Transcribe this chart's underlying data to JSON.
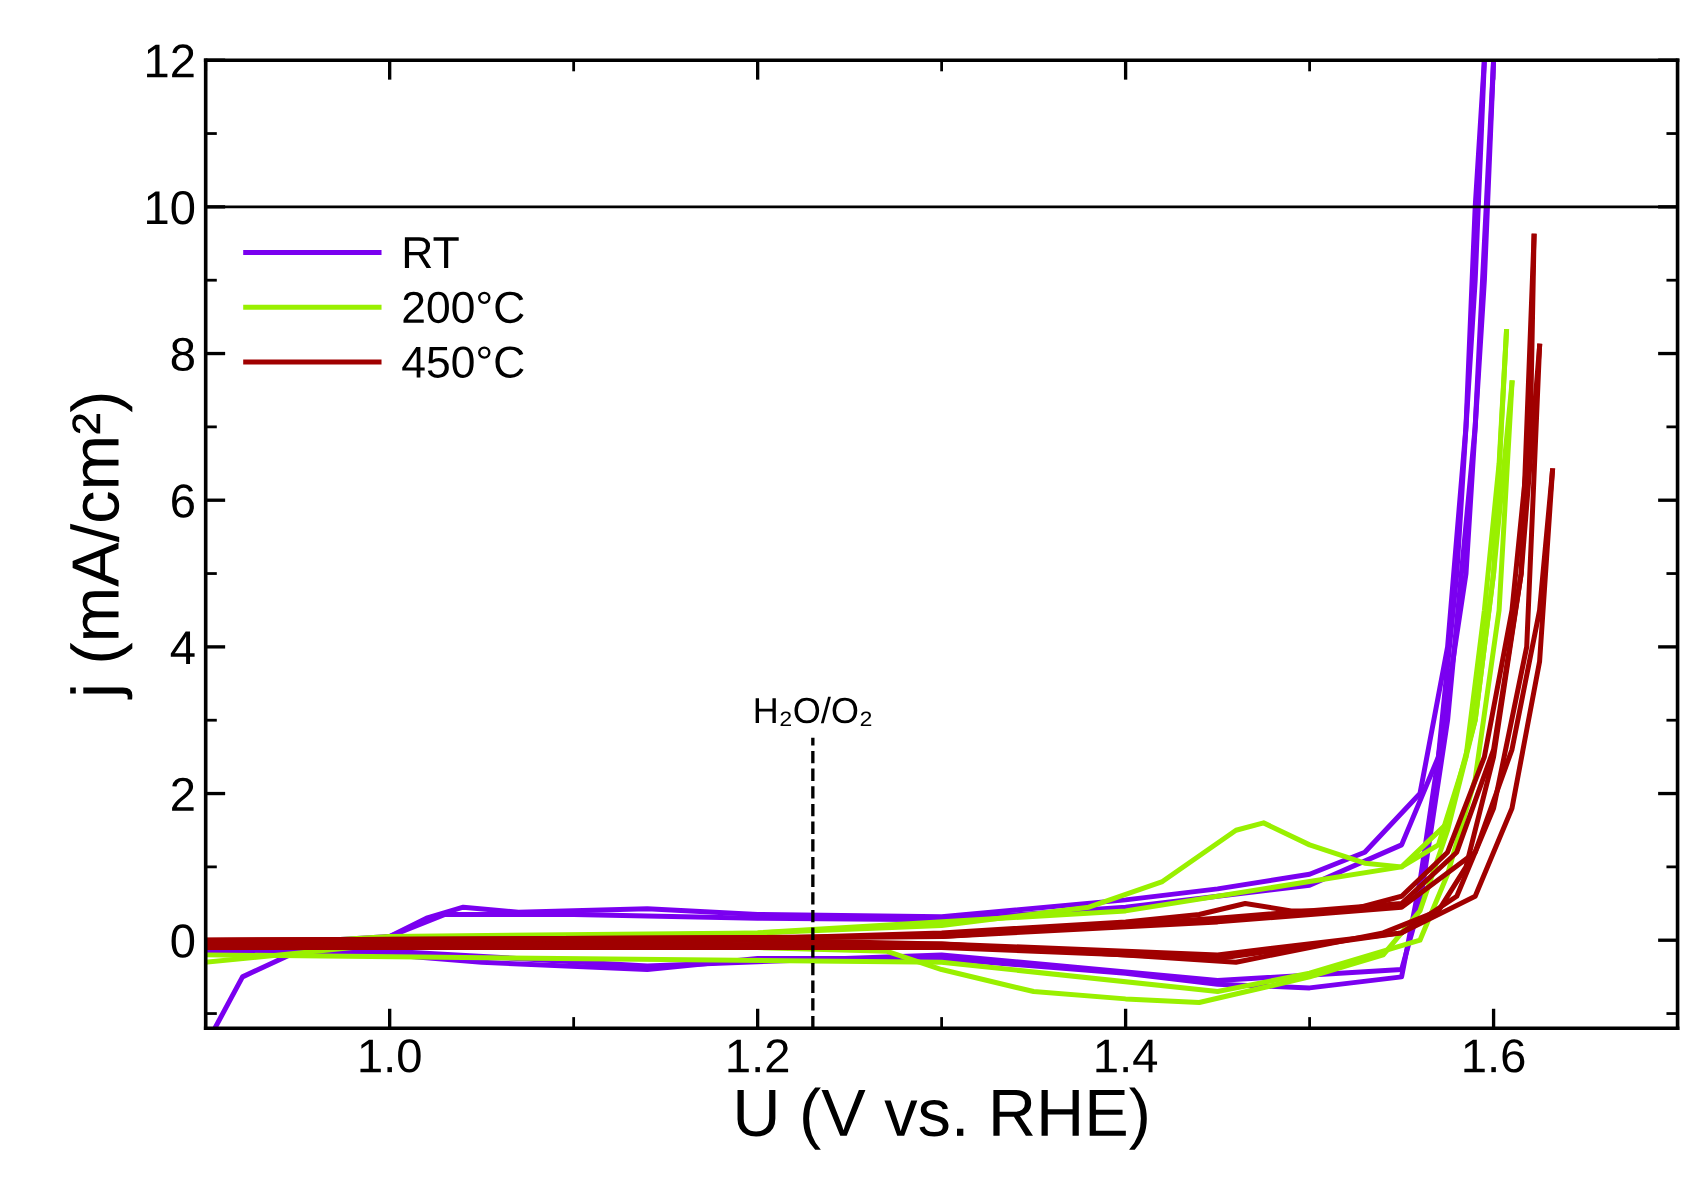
{
  "chart_data": {
    "type": "line",
    "xlabel": "U (V vs. RHE)",
    "ylabel": "j (mA/cm²)",
    "xlim": [
      0.9,
      1.7
    ],
    "ylim": [
      -1.2,
      12
    ],
    "xticks": [
      {
        "value": 1.0,
        "label": "1.0"
      },
      {
        "value": 1.2,
        "label": "1.2"
      },
      {
        "value": 1.4,
        "label": "1.4"
      },
      {
        "value": 1.6,
        "label": "1.6"
      }
    ],
    "yticks": [
      0,
      2,
      4,
      6,
      8,
      10,
      12
    ],
    "grid": false,
    "legend": "top left",
    "marker": "none",
    "line_style": "solid",
    "ref_lines": [
      {
        "axis": "y",
        "value": 10,
        "color": "#000000",
        "line_style": "solid"
      },
      {
        "axis": "x",
        "value": 1.23,
        "label": "H₂O/O₂",
        "color": "#000000",
        "line_style": "dashed"
      }
    ],
    "series": [
      {
        "name": "RT",
        "color": "#7a00f0",
        "x": [
          0.905,
          0.92,
          0.95,
          1.0,
          1.02,
          1.04,
          1.07,
          1.14,
          1.2,
          1.3,
          1.4,
          1.45,
          1.5,
          1.53,
          1.56,
          1.575,
          1.585,
          1.59,
          1.595
        ],
        "values": [
          -1.2,
          -0.5,
          -0.15,
          0.05,
          0.3,
          0.45,
          0.38,
          0.43,
          0.35,
          0.32,
          0.55,
          0.7,
          0.9,
          1.2,
          2.0,
          4,
          7,
          10,
          12
        ]
      },
      {
        "color": "#7a00f0",
        "x": [
          0.9,
          1.0,
          1.05,
          1.14,
          1.2,
          1.3,
          1.4,
          1.45,
          1.5,
          1.55,
          1.56,
          1.57,
          1.58,
          1.59,
          1.595
        ],
        "values": [
          -0.15,
          -0.2,
          -0.3,
          -0.4,
          -0.25,
          -0.25,
          -0.45,
          -0.6,
          -0.65,
          -0.5,
          0.8,
          2.5,
          5,
          9,
          12
        ]
      },
      {
        "color": "#7a00f0",
        "x": [
          0.9,
          1.0,
          1.03,
          1.1,
          1.2,
          1.3,
          1.4,
          1.5,
          1.55,
          1.57,
          1.585,
          1.595,
          1.6
        ],
        "values": [
          -0.1,
          0.05,
          0.35,
          0.35,
          0.3,
          0.28,
          0.45,
          0.75,
          1.3,
          2.5,
          5,
          9,
          12
        ]
      },
      {
        "color": "#7a00f0",
        "x": [
          0.9,
          1.0,
          1.14,
          1.3,
          1.45,
          1.55,
          1.56,
          1.575,
          1.59,
          1.6
        ],
        "values": [
          -0.18,
          -0.15,
          -0.35,
          -0.2,
          -0.55,
          -0.4,
          0.5,
          3,
          7,
          12
        ]
      },
      {
        "name": "200°C",
        "color": "#99f000",
        "x": [
          0.9,
          1.0,
          1.2,
          1.3,
          1.38,
          1.42,
          1.46,
          1.475,
          1.5,
          1.53,
          1.55,
          1.57,
          1.585,
          1.595,
          1.603,
          1.607
        ],
        "values": [
          -0.1,
          0.05,
          0.1,
          0.2,
          0.45,
          0.8,
          1.5,
          1.6,
          1.3,
          1.05,
          1.0,
          1.3,
          2.5,
          4.5,
          6.5,
          8.3
        ]
      },
      {
        "color": "#99f000",
        "x": [
          0.9,
          1.0,
          1.2,
          1.27,
          1.3,
          1.35,
          1.4,
          1.44,
          1.5,
          1.54,
          1.56,
          1.575,
          1.59,
          1.6,
          1.607
        ],
        "values": [
          -0.3,
          -0.05,
          -0.1,
          -0.15,
          -0.4,
          -0.7,
          -0.8,
          -0.85,
          -0.5,
          -0.2,
          0.4,
          1.5,
          3,
          5,
          8.3
        ]
      },
      {
        "color": "#99f000",
        "x": [
          0.9,
          1.2,
          1.4,
          1.5,
          1.55,
          1.575,
          1.59,
          1.6,
          1.61
        ],
        "values": [
          -0.05,
          0.1,
          0.4,
          0.8,
          1.0,
          1.6,
          3,
          5,
          7.6
        ]
      },
      {
        "color": "#99f000",
        "x": [
          0.9,
          1.3,
          1.45,
          1.5,
          1.56,
          1.575,
          1.59,
          1.603,
          1.61
        ],
        "values": [
          -0.2,
          -0.3,
          -0.7,
          -0.45,
          0.0,
          0.9,
          2.2,
          4.5,
          7.6
        ]
      },
      {
        "name": "450°C",
        "color": "#a00000",
        "x": [
          0.9,
          1.2,
          1.3,
          1.4,
          1.44,
          1.465,
          1.49,
          1.52,
          1.55,
          1.575,
          1.595,
          1.61,
          1.62,
          1.622
        ],
        "values": [
          0,
          0.02,
          0.1,
          0.25,
          0.35,
          0.5,
          0.4,
          0.4,
          0.6,
          1.2,
          2.5,
          4.5,
          7,
          9.6
        ]
      },
      {
        "color": "#a00000",
        "x": [
          0.9,
          1.2,
          1.3,
          1.4,
          1.46,
          1.5,
          1.54,
          1.57,
          1.585,
          1.6,
          1.615,
          1.622
        ],
        "values": [
          -0.06,
          0,
          -0.05,
          -0.2,
          -0.3,
          -0.1,
          0.1,
          0.4,
          1.0,
          2.5,
          5,
          9.6
        ]
      },
      {
        "color": "#a00000",
        "x": [
          0.9,
          1.3,
          1.45,
          1.55,
          1.58,
          1.6,
          1.615,
          1.625
        ],
        "values": [
          0,
          0.05,
          0.3,
          0.5,
          1.2,
          2.6,
          5,
          8.1
        ]
      },
      {
        "color": "#a00000",
        "x": [
          0.9,
          1.3,
          1.45,
          1.55,
          1.58,
          1.6,
          1.618,
          1.625
        ],
        "values": [
          -0.1,
          -0.1,
          -0.25,
          0.1,
          0.6,
          1.8,
          4,
          8.1
        ]
      },
      {
        "color": "#a00000",
        "x": [
          0.9,
          1.3,
          1.45,
          1.55,
          1.59,
          1.61,
          1.625,
          1.632
        ],
        "values": [
          0,
          0.05,
          0.25,
          0.45,
          1.2,
          2.6,
          4.5,
          6.4
        ]
      },
      {
        "color": "#a00000",
        "x": [
          0.9,
          1.3,
          1.45,
          1.55,
          1.59,
          1.61,
          1.625,
          1.632
        ],
        "values": [
          -0.08,
          -0.05,
          -0.2,
          0.1,
          0.6,
          1.8,
          3.8,
          6.4
        ]
      }
    ]
  }
}
